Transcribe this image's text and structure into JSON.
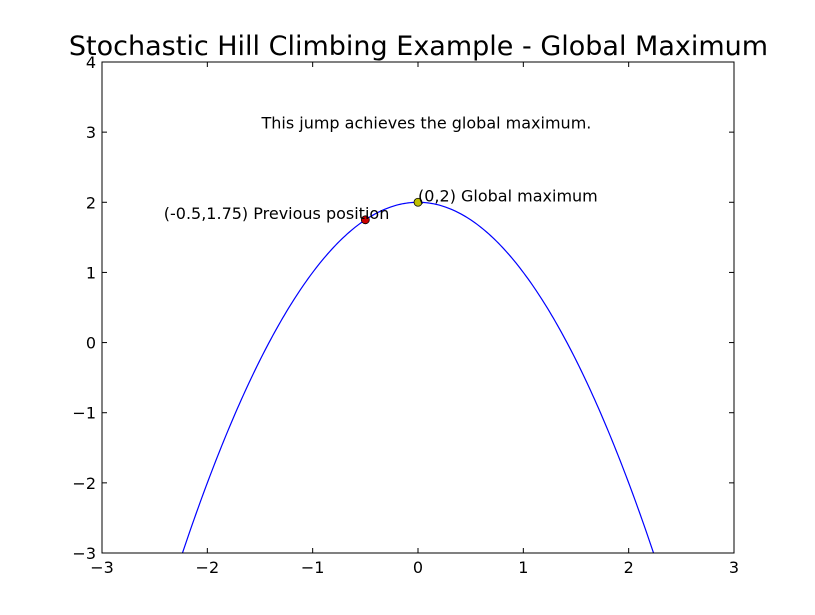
{
  "chart_data": {
    "type": "line",
    "title": "Stochastic Hill Climbing Example - Global Maximum",
    "xlabel": "",
    "ylabel": "",
    "xlim": [
      -3,
      3
    ],
    "ylim": [
      -3,
      4
    ],
    "xticks": [
      -3,
      -2,
      -1,
      0,
      1,
      2,
      3
    ],
    "yticks": [
      -3,
      -2,
      -1,
      0,
      1,
      2,
      3,
      4
    ],
    "xtick_labels": [
      "−3",
      "−2",
      "−1",
      "0",
      "1",
      "2",
      "3"
    ],
    "ytick_labels": [
      "−3",
      "−2",
      "−1",
      "0",
      "1",
      "2",
      "3",
      "4"
    ],
    "grid": false,
    "series": [
      {
        "function": "y = 2 - x^2",
        "x_range": [
          -2.236,
          2.236
        ],
        "color": "#0000ff"
      }
    ],
    "points": [
      {
        "x": -0.5,
        "y": 1.75,
        "color": "#cc0000",
        "label": "(-0.5,1.75) Previous position"
      },
      {
        "x": 0,
        "y": 2,
        "color": "#bfbf00",
        "label": "(0,2) Global maximum"
      }
    ],
    "annotations": [
      {
        "text": "This jump achieves the global maximum.",
        "x": 0.08,
        "y": 3.05
      }
    ]
  }
}
